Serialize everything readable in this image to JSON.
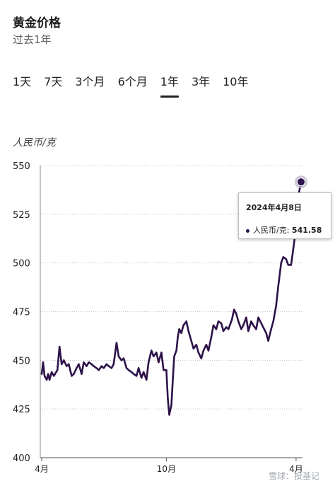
{
  "header": {
    "title": "黄金价格",
    "subtitle": "过去1年"
  },
  "tabs": [
    {
      "label": "1天",
      "active": false
    },
    {
      "label": "7天",
      "active": false
    },
    {
      "label": "3个月",
      "active": false
    },
    {
      "label": "6个月",
      "active": false
    },
    {
      "label": "1年",
      "active": true
    },
    {
      "label": "3年",
      "active": false
    },
    {
      "label": "10年",
      "active": false
    }
  ],
  "unit_label": "人民币/克",
  "tooltip": {
    "date": "2024年4月8日",
    "series_label": "人民币/克:",
    "value": "541.58"
  },
  "watermark": "雪球：投基记",
  "colors": {
    "line": "#2d1249",
    "grid": "#c8c8c8",
    "axis": "#555555",
    "highlight_ring": "#b9b0c8"
  },
  "chart_data": {
    "type": "line",
    "title": "黄金价格",
    "subtitle": "过去1年",
    "ylabel": "人民币/克",
    "ylim": [
      400,
      550
    ],
    "yticks": [
      400,
      425,
      450,
      475,
      500,
      525,
      550
    ],
    "xtick_labels": [
      {
        "date": "2023-04-10",
        "label": "4月"
      },
      {
        "date": "2023-10-02",
        "label": "10月"
      },
      {
        "date": "2024-04-01",
        "label": "4月"
      }
    ],
    "xrange": [
      "2023-04-08",
      "2024-04-10"
    ],
    "grid": true,
    "series": [
      {
        "name": "人民币/克",
        "points": [
          [
            "2023-04-10",
            443
          ],
          [
            "2023-04-12",
            449
          ],
          [
            "2023-04-14",
            442
          ],
          [
            "2023-04-17",
            440
          ],
          [
            "2023-04-19",
            443
          ],
          [
            "2023-04-21",
            440
          ],
          [
            "2023-04-24",
            444
          ],
          [
            "2023-04-27",
            442
          ],
          [
            "2023-05-02",
            445
          ],
          [
            "2023-05-05",
            457
          ],
          [
            "2023-05-08",
            448
          ],
          [
            "2023-05-11",
            450
          ],
          [
            "2023-05-15",
            447
          ],
          [
            "2023-05-18",
            448
          ],
          [
            "2023-05-22",
            442
          ],
          [
            "2023-05-25",
            443
          ],
          [
            "2023-05-29",
            446
          ],
          [
            "2023-06-01",
            448
          ],
          [
            "2023-06-05",
            443
          ],
          [
            "2023-06-08",
            449
          ],
          [
            "2023-06-12",
            447
          ],
          [
            "2023-06-15",
            449
          ],
          [
            "2023-06-19",
            448
          ],
          [
            "2023-06-22",
            447
          ],
          [
            "2023-06-26",
            446
          ],
          [
            "2023-06-29",
            445
          ],
          [
            "2023-07-03",
            447
          ],
          [
            "2023-07-06",
            446
          ],
          [
            "2023-07-10",
            448
          ],
          [
            "2023-07-13",
            447
          ],
          [
            "2023-07-17",
            446
          ],
          [
            "2023-07-20",
            448
          ],
          [
            "2023-07-24",
            459
          ],
          [
            "2023-07-27",
            452
          ],
          [
            "2023-07-31",
            450
          ],
          [
            "2023-08-03",
            451
          ],
          [
            "2023-08-07",
            446
          ],
          [
            "2023-08-10",
            445
          ],
          [
            "2023-08-14",
            444
          ],
          [
            "2023-08-17",
            443
          ],
          [
            "2023-08-21",
            442
          ],
          [
            "2023-08-24",
            446
          ],
          [
            "2023-08-28",
            441
          ],
          [
            "2023-08-31",
            444
          ],
          [
            "2023-09-04",
            440
          ],
          [
            "2023-09-07",
            449
          ],
          [
            "2023-09-11",
            455
          ],
          [
            "2023-09-14",
            452
          ],
          [
            "2023-09-18",
            454
          ],
          [
            "2023-09-21",
            449
          ],
          [
            "2023-09-25",
            454
          ],
          [
            "2023-09-28",
            445
          ],
          [
            "2023-10-02",
            445
          ],
          [
            "2023-10-04",
            430
          ],
          [
            "2023-10-06",
            422
          ],
          [
            "2023-10-09",
            427
          ],
          [
            "2023-10-11",
            440
          ],
          [
            "2023-10-13",
            452
          ],
          [
            "2023-10-16",
            455
          ],
          [
            "2023-10-18",
            462
          ],
          [
            "2023-10-20",
            466
          ],
          [
            "2023-10-23",
            464
          ],
          [
            "2023-10-26",
            468
          ],
          [
            "2023-10-30",
            470
          ],
          [
            "2023-11-02",
            465
          ],
          [
            "2023-11-06",
            460
          ],
          [
            "2023-11-09",
            456
          ],
          [
            "2023-11-13",
            458
          ],
          [
            "2023-11-16",
            454
          ],
          [
            "2023-11-20",
            451
          ],
          [
            "2023-11-23",
            455
          ],
          [
            "2023-11-27",
            458
          ],
          [
            "2023-11-30",
            455
          ],
          [
            "2023-12-04",
            462
          ],
          [
            "2023-12-07",
            468
          ],
          [
            "2023-12-11",
            466
          ],
          [
            "2023-12-14",
            470
          ],
          [
            "2023-12-18",
            469
          ],
          [
            "2023-12-21",
            465
          ],
          [
            "2023-12-25",
            467
          ],
          [
            "2023-12-28",
            466
          ],
          [
            "2024-01-02",
            471
          ],
          [
            "2024-01-05",
            476
          ],
          [
            "2024-01-08",
            474
          ],
          [
            "2024-01-11",
            470
          ],
          [
            "2024-01-15",
            466
          ],
          [
            "2024-01-18",
            468
          ],
          [
            "2024-01-22",
            472
          ],
          [
            "2024-01-25",
            465
          ],
          [
            "2024-01-29",
            470
          ],
          [
            "2024-02-01",
            468
          ],
          [
            "2024-02-05",
            466
          ],
          [
            "2024-02-08",
            472
          ],
          [
            "2024-02-19",
            464
          ],
          [
            "2024-02-22",
            460
          ],
          [
            "2024-02-26",
            466
          ],
          [
            "2024-02-29",
            470
          ],
          [
            "2024-03-04",
            478
          ],
          [
            "2024-03-07",
            488
          ],
          [
            "2024-03-11",
            500
          ],
          [
            "2024-03-14",
            503
          ],
          [
            "2024-03-18",
            502
          ],
          [
            "2024-03-21",
            499
          ],
          [
            "2024-03-25",
            499
          ],
          [
            "2024-03-28",
            507
          ],
          [
            "2024-04-01",
            518
          ],
          [
            "2024-04-03",
            530
          ],
          [
            "2024-04-05",
            536
          ],
          [
            "2024-04-08",
            541.58
          ]
        ]
      }
    ],
    "highlight": {
      "date": "2024-04-08",
      "value": 541.58
    }
  }
}
